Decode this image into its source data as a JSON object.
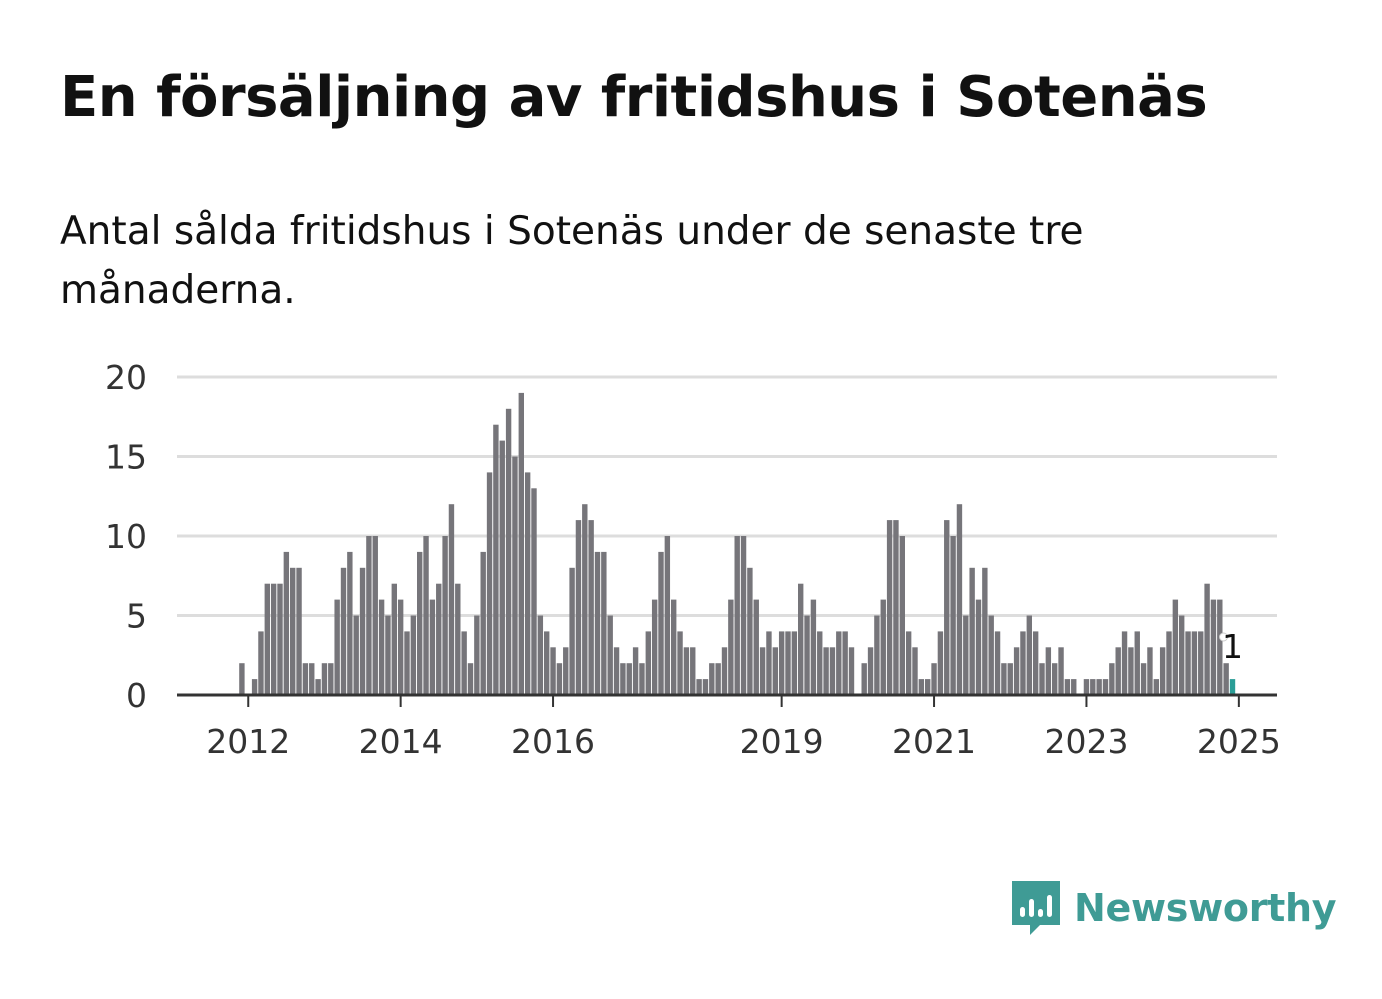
{
  "title": "En försäljning av fritidshus i Sotenäs",
  "subtitle": "Antal sålda fritidshus i Sotenäs under de senaste tre månaderna.",
  "brand": {
    "name": "Newsworthy",
    "color": "#3f9b95",
    "icon": "newsworthy-logo-icon"
  },
  "colors": {
    "bar": "#76757a",
    "highlight": "#2a9d96",
    "grid": "#dddddd",
    "axis": "#333333"
  },
  "chart_data": {
    "type": "bar",
    "title": "En försäljning av fritidshus i Sotenäs",
    "subtitle": "Antal sålda fritidshus i Sotenäs under de senaste tre månaderna.",
    "xlabel": "",
    "ylabel": "",
    "ylim": [
      0,
      20
    ],
    "yticks": [
      0,
      5,
      10,
      15,
      20
    ],
    "xticks": [
      "2012",
      "2014",
      "2016",
      "2019",
      "2021",
      "2023",
      "2025"
    ],
    "grid": true,
    "legend": "none",
    "start_period": "2011-10",
    "frequency": "monthly",
    "values": [
      0,
      0,
      2,
      0,
      1,
      4,
      7,
      7,
      7,
      9,
      8,
      8,
      2,
      2,
      1,
      2,
      2,
      6,
      8,
      9,
      5,
      8,
      10,
      10,
      6,
      5,
      7,
      6,
      4,
      5,
      9,
      10,
      6,
      7,
      10,
      12,
      7,
      4,
      2,
      5,
      9,
      14,
      17,
      16,
      18,
      15,
      19,
      14,
      13,
      5,
      4,
      3,
      2,
      3,
      8,
      11,
      12,
      11,
      9,
      9,
      5,
      3,
      2,
      2,
      3,
      2,
      4,
      6,
      9,
      10,
      6,
      4,
      3,
      3,
      1,
      1,
      2,
      2,
      3,
      6,
      10,
      10,
      8,
      6,
      3,
      4,
      3,
      4,
      4,
      4,
      7,
      5,
      6,
      4,
      3,
      3,
      4,
      4,
      3,
      0,
      2,
      3,
      5,
      6,
      11,
      11,
      10,
      4,
      3,
      1,
      1,
      2,
      4,
      11,
      10,
      12,
      5,
      8,
      6,
      8,
      5,
      4,
      2,
      2,
      3,
      4,
      5,
      4,
      2,
      3,
      2,
      3,
      1,
      1,
      0,
      1,
      1,
      1,
      1,
      2,
      3,
      4,
      3,
      4,
      2,
      3,
      1,
      3,
      4,
      6,
      5,
      4,
      4,
      4,
      7,
      6,
      6,
      2,
      1
    ],
    "highlight_last": true,
    "annotation": {
      "text": "1",
      "target": "last"
    }
  }
}
